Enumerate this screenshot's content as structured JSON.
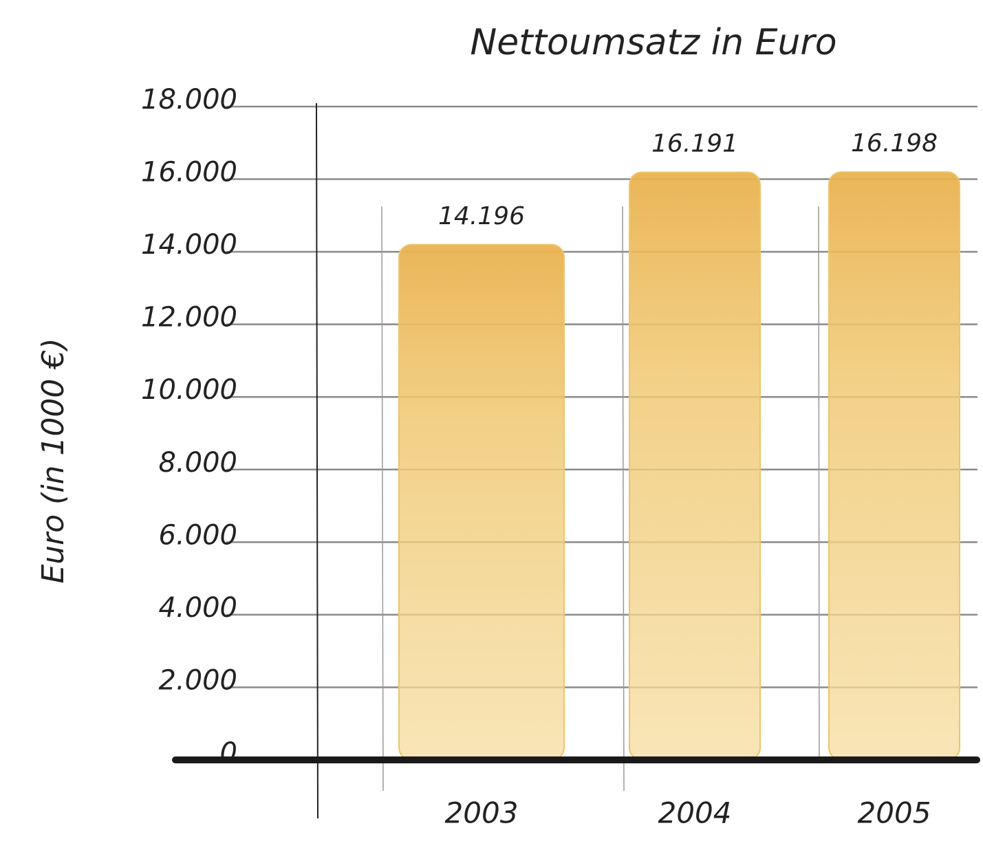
{
  "chart_data": {
    "type": "bar",
    "title": "Nettoumsatz in Euro",
    "y_label": "Euro (in 1000 €)",
    "categories": [
      "2003",
      "2004",
      "2005"
    ],
    "values": [
      14196,
      16191,
      16198
    ],
    "value_labels": [
      "14.196",
      "16.191",
      "16.198"
    ],
    "color": "#eec46a",
    "ylim": [
      0,
      18000
    ],
    "yticks": [
      0,
      {
        "value": 2000,
        "label": "2.000"
      },
      {
        "value": 4000,
        "label": "4.000"
      },
      {
        "value": 6000,
        "label": "6.000"
      },
      {
        "value": 8000,
        "label": "8.000"
      },
      {
        "value": 10000,
        "label": "10.000"
      },
      {
        "value": 12000,
        "label": "12.000"
      },
      {
        "value": 14000,
        "label": "14.000"
      },
      {
        "value": 16000,
        "label": "16.000"
      },
      {
        "value": 18000,
        "label": "18.000"
      }
    ],
    "grid": true
  }
}
